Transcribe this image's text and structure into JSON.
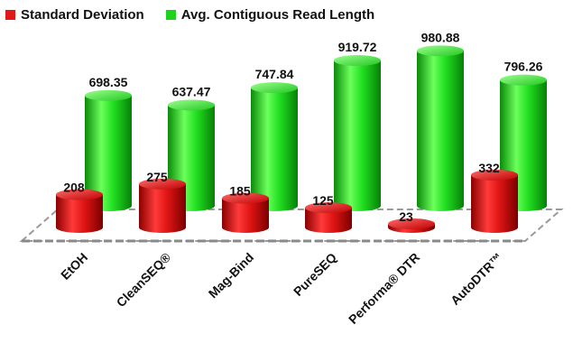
{
  "chart_data": {
    "type": "bar",
    "categories": [
      "EtOH",
      "CleanSEQ®",
      "Mag-Bind",
      "PureSEQ",
      "Performa® DTR",
      "AutoDTR™"
    ],
    "series": [
      {
        "name": "Standard Deviation",
        "color": "#e01818",
        "values": [
          208,
          275,
          185,
          125,
          23,
          332
        ]
      },
      {
        "name": "Avg. Contiguous Read Length",
        "color": "#1ed31e",
        "values": [
          698.35,
          637.47,
          747.84,
          919.72,
          980.88,
          796.26
        ]
      }
    ],
    "value_labels": {
      "Standard Deviation": [
        "208",
        "275",
        "185",
        "125",
        "23",
        "332"
      ],
      "Avg. Contiguous Read Length": [
        "698.35",
        "637.47",
        "747.84",
        "919.72",
        "980.88",
        "796.26"
      ]
    },
    "title": "",
    "xlabel": "",
    "ylabel": "",
    "ylim": [
      0,
      1000
    ],
    "grid": false,
    "legend_position": "top-left",
    "style": "3d-cylinder"
  }
}
